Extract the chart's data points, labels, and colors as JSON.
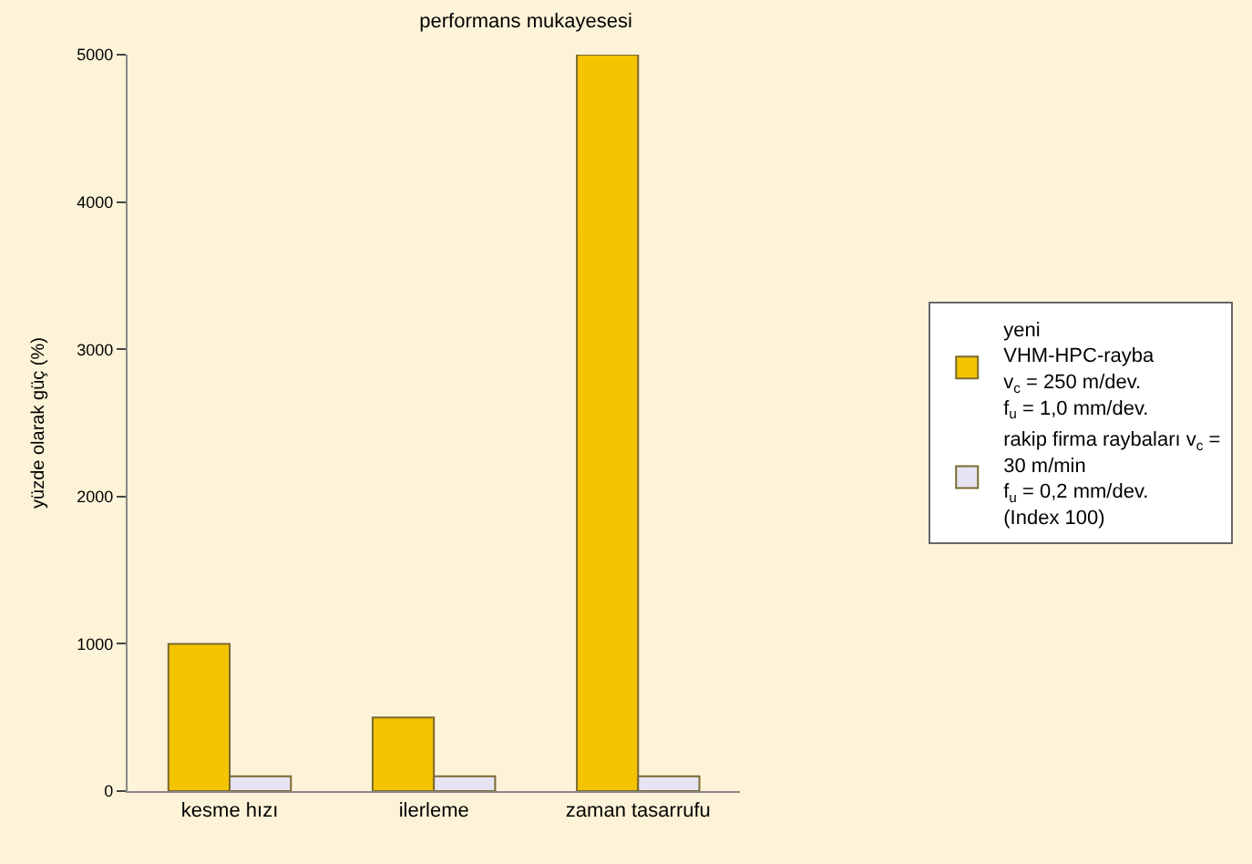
{
  "chart_data": {
    "type": "bar",
    "title": "performans mukayesesi",
    "ylabel": "yüzde olarak güç (%)",
    "categories": [
      "kesme hızı",
      "ilerleme",
      "zaman tasarrufu"
    ],
    "series": [
      {
        "name": "yeni\nVHM-HPC-rayba\nv$_{c}$ = 250 m/dev.\nf$_{u}$ = 1,0 mm/dev.",
        "color": "#f5c400",
        "values": [
          1000,
          500,
          5000
        ]
      },
      {
        "name": "rakip firma raybaları v$_{c}$ =\n30 m/min\nf$_{u}$ = 0,2 mm/dev.\n(Index 100)",
        "color": "#e6e4f2",
        "values": [
          100,
          100,
          100
        ]
      }
    ],
    "ylim": [
      0,
      5000
    ],
    "yticks": [
      0,
      1000,
      2000,
      3000,
      4000,
      5000
    ],
    "grid": false,
    "legend": "right"
  }
}
